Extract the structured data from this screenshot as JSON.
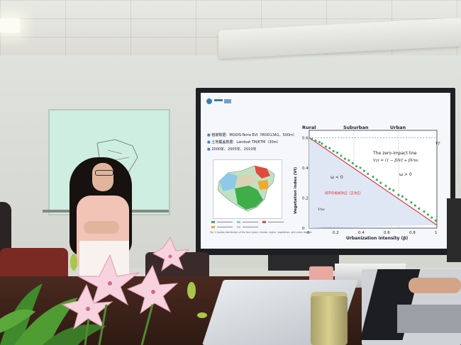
{
  "slide": {
    "bullets": [
      "植被数据：MODIS-Terra EVI（MOD13A1，500m）",
      "土地覆盖数据：Landsat TM/ETM（30m）",
      "2000年、2005年、2010年"
    ],
    "caption": "Fig. 2   Spatial distribution of the four types: climate, region, vegetation, and urban regions",
    "chart_data": {
      "type": "scatter",
      "title": "",
      "zones": [
        "Rural",
        "Suburban",
        "Urban"
      ],
      "xlabel": "Urbanization intensity (β)",
      "ylabel": "Vegetation index (VI)",
      "x_ticks": [
        "0",
        "0.2",
        "0.4",
        "0.6",
        "0.8",
        "1"
      ],
      "y_ticks": [
        "0",
        "0.2",
        "0.4",
        "0.6"
      ],
      "xlim": [
        0,
        1
      ],
      "ylim": [
        0,
        0.62
      ],
      "annotations": {
        "line_label": "The zero-impact line",
        "equation": "Vzi = (1 − β)Vf + βVnv",
        "omega_neg": "ω < 0",
        "omega_pos": "ω > 0",
        "vf": "Vf",
        "vnv": "Vnv",
        "red_note": "城市的植被效应（正效应）"
      },
      "zero_impact_line": {
        "x": [
          0,
          1
        ],
        "y": [
          0.6,
          0.02
        ]
      },
      "points": {
        "x": [
          0.02,
          0.05,
          0.08,
          0.1,
          0.13,
          0.16,
          0.19,
          0.22,
          0.25,
          0.28,
          0.31,
          0.34,
          0.37,
          0.4,
          0.43,
          0.46,
          0.5,
          0.53,
          0.56,
          0.6,
          0.63,
          0.66,
          0.7,
          0.73,
          0.76,
          0.8,
          0.83,
          0.86,
          0.9,
          0.93,
          0.96,
          0.99
        ],
        "y": [
          0.59,
          0.58,
          0.57,
          0.56,
          0.54,
          0.53,
          0.51,
          0.5,
          0.48,
          0.46,
          0.45,
          0.43,
          0.41,
          0.4,
          0.38,
          0.36,
          0.34,
          0.32,
          0.3,
          0.28,
          0.26,
          0.25,
          0.22,
          0.21,
          0.19,
          0.17,
          0.15,
          0.13,
          0.11,
          0.09,
          0.07,
          0.05
        ]
      }
    }
  }
}
